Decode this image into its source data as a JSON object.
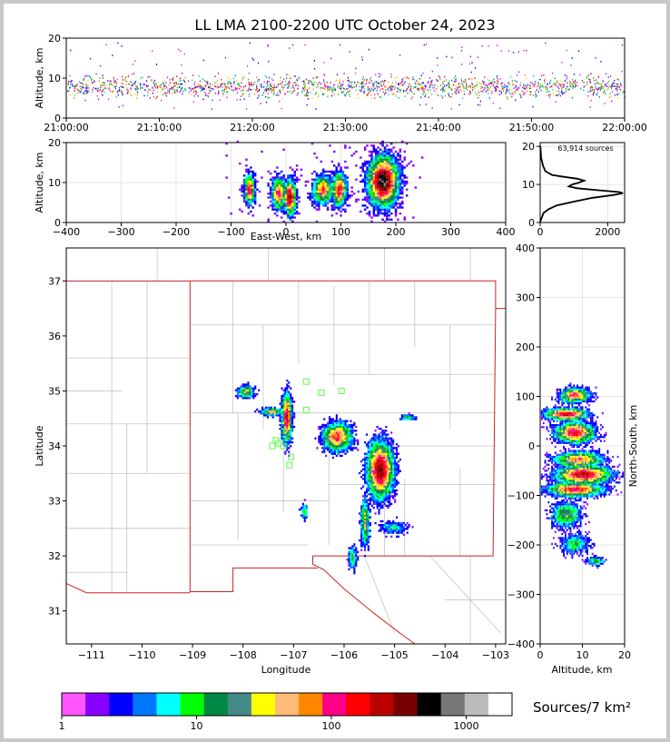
{
  "title": "LL LMA 2100-2200 UTC October 24, 2023",
  "source_count": "63,914 sources",
  "colorbar_label": "Sources/7 km²",
  "chart_data": [
    {
      "id": "alt_time",
      "type": "scatter",
      "ylabel": "Altitude, km",
      "ylim": [
        0,
        20
      ],
      "yticks": [
        "0",
        "10",
        "20"
      ],
      "xticks": [
        "21:00:00",
        "21:10:00",
        "21:20:00",
        "21:30:00",
        "21:40:00",
        "21:50:00",
        "22:00:00"
      ],
      "xlim_minutes": [
        0,
        60
      ]
    },
    {
      "id": "ew_alt",
      "type": "heatmap",
      "xlabel": "East-West, km",
      "ylabel": "Altitude, km",
      "xlim": [
        -400,
        400
      ],
      "ylim": [
        0,
        20
      ],
      "xticks": [
        "−400",
        "−300",
        "−200",
        "−100",
        "0",
        "100",
        "200",
        "300",
        "400"
      ],
      "yticks": [
        "0",
        "10",
        "20"
      ]
    },
    {
      "id": "alt_hist",
      "type": "line",
      "xlim": [
        0,
        2500
      ],
      "ylim": [
        0,
        21
      ],
      "xticks": [
        "0",
        "2000"
      ],
      "yticks": [
        "0",
        "10",
        "20"
      ],
      "profile": [
        [
          0.2,
          0
        ],
        [
          2.5,
          100
        ],
        [
          3.5,
          250
        ],
        [
          4.5,
          500
        ],
        [
          5.5,
          1000
        ],
        [
          6.5,
          1550
        ],
        [
          7.2,
          2150
        ],
        [
          7.7,
          2450
        ],
        [
          8.0,
          2350
        ],
        [
          8.5,
          1700
        ],
        [
          9.0,
          1100
        ],
        [
          9.5,
          850
        ],
        [
          10.0,
          950
        ],
        [
          10.5,
          1150
        ],
        [
          11.0,
          1300
        ],
        [
          11.5,
          1100
        ],
        [
          12.0,
          700
        ],
        [
          12.5,
          350
        ],
        [
          13.5,
          150
        ],
        [
          15,
          80
        ],
        [
          17,
          30
        ],
        [
          20,
          5
        ]
      ]
    },
    {
      "id": "plan",
      "type": "heatmap",
      "xlabel": "Longitude",
      "ylabel": "Latitude",
      "xlim": [
        -111.5,
        -102.8
      ],
      "ylim": [
        30.4,
        37.6
      ],
      "xticks": [
        "−111",
        "−110",
        "−109",
        "−108",
        "−107",
        "−106",
        "−105",
        "−104",
        "−103"
      ],
      "yticks": [
        "31",
        "32",
        "33",
        "34",
        "35",
        "36",
        "37"
      ]
    },
    {
      "id": "ns_alt",
      "type": "heatmap",
      "xlabel": "Altitude, km",
      "ylabel": "North-South, km",
      "xlim": [
        0,
        20
      ],
      "ylim": [
        -400,
        400
      ],
      "xticks": [
        "0",
        "10",
        "20"
      ],
      "yticks": [
        "−400",
        "−300",
        "−200",
        "−100",
        "0",
        "100",
        "200",
        "300",
        "400"
      ]
    }
  ],
  "colorbar": {
    "ticks": [
      "1",
      "10",
      "100",
      "1000"
    ],
    "colors": [
      "#ff55ff",
      "#8800ff",
      "#0000ff",
      "#0077ff",
      "#00ffff",
      "#00ff00",
      "#008844",
      "#448888",
      "#ffff00",
      "#ffbb77",
      "#ff8800",
      "#ff0088",
      "#ff0000",
      "#bb0000",
      "#770000",
      "#000000",
      "#777777",
      "#bbbbbb",
      "#ffffff"
    ]
  }
}
